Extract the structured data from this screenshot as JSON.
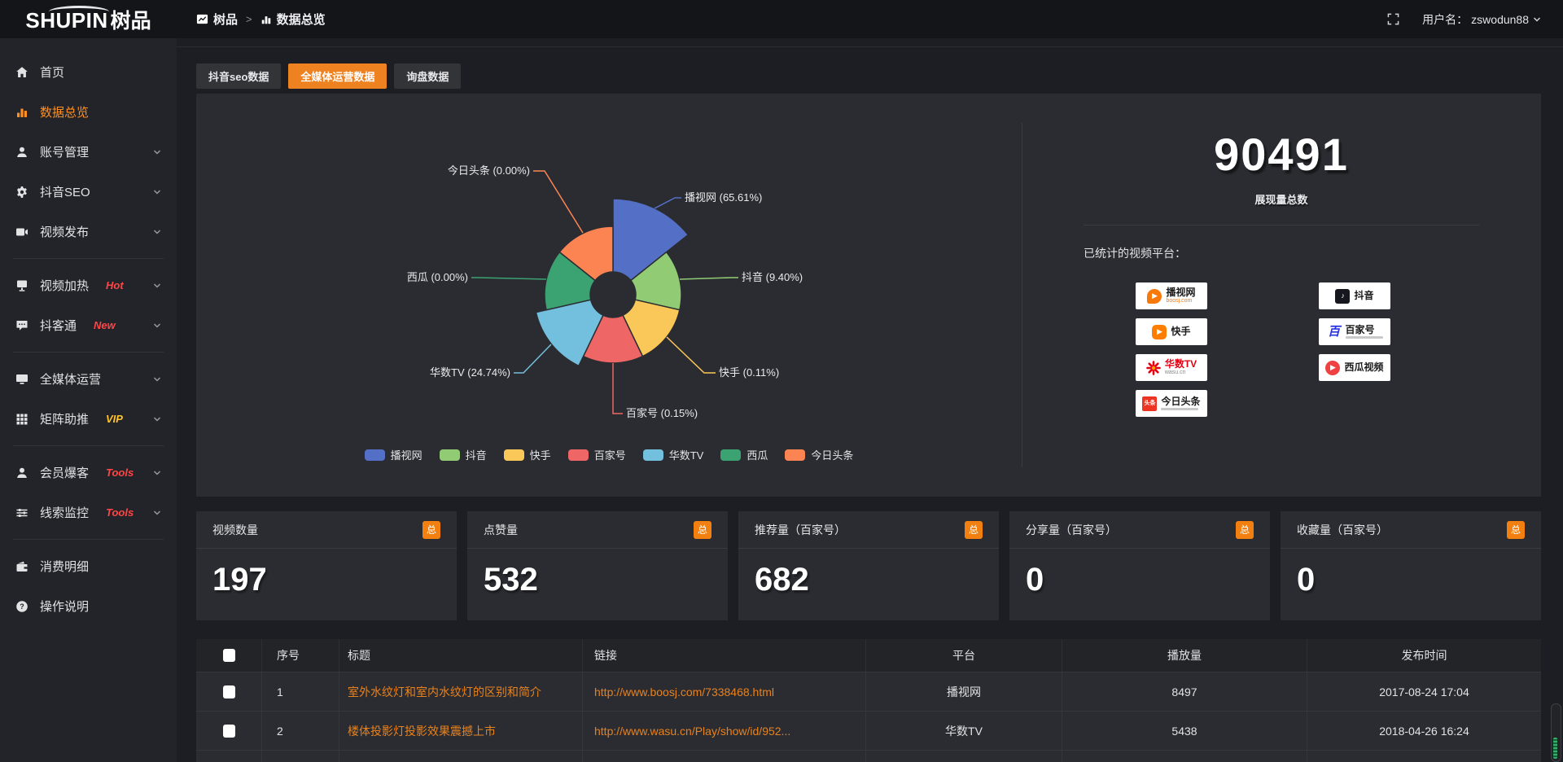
{
  "colors": {
    "accent_orange": "#ee8220",
    "link_orange": "#e8821c",
    "badge_red": "#ff4545",
    "badge_gold": "#ffc32b",
    "panel_bg": "#2b2c31",
    "page_bg": "#1d1e23",
    "sidebar_bg": "#232429",
    "topbar_bg": "#141519"
  },
  "topbar": {
    "logo_text": "SHUPIN",
    "logo_suffix": "树品",
    "breadcrumb": [
      {
        "label": "树品"
      },
      {
        "label": "数据总览"
      }
    ],
    "breadcrumb_separator": ">",
    "username_label": "用户名：",
    "username": "zswodun88"
  },
  "sidebar": {
    "items": [
      {
        "label": "首页",
        "icon": "home"
      },
      {
        "label": "数据总览",
        "icon": "chart",
        "active": true
      },
      {
        "label": "账号管理",
        "icon": "user",
        "chevron": true
      },
      {
        "label": "抖音SEO",
        "icon": "gear",
        "chevron": true
      },
      {
        "label": "视频发布",
        "icon": "video",
        "chevron": true,
        "divider_after": true
      },
      {
        "label": "视频加热",
        "icon": "heat",
        "badge": "Hot",
        "badge_color": "red",
        "chevron": true
      },
      {
        "label": "抖客通",
        "icon": "chat",
        "badge": "New",
        "badge_color": "red",
        "chevron": true,
        "divider_after": true
      },
      {
        "label": "全媒体运营",
        "icon": "monitor",
        "chevron": true
      },
      {
        "label": "矩阵助推",
        "icon": "grid",
        "badge": "VIP",
        "badge_color": "gold",
        "chevron": true,
        "divider_after": true
      },
      {
        "label": "会员爆客",
        "icon": "member",
        "badge": "Tools",
        "badge_color": "red",
        "chevron": true
      },
      {
        "label": "线索监控",
        "icon": "sliders",
        "badge": "Tools",
        "badge_color": "red",
        "chevron": true,
        "divider_after": true
      },
      {
        "label": "消费明细",
        "icon": "wallet"
      },
      {
        "label": "操作说明",
        "icon": "help"
      }
    ]
  },
  "tabs": [
    {
      "label": "抖音seo数据",
      "active": false
    },
    {
      "label": "全媒体运营数据",
      "active": true
    },
    {
      "label": "询盘数据",
      "active": false
    }
  ],
  "chart_data": {
    "type": "pie",
    "variant": "nightingale-rose",
    "title": "",
    "slices": [
      {
        "name": "播视网",
        "value": 65.61,
        "percent": "65.61%",
        "color": "#5470c6"
      },
      {
        "name": "抖音",
        "value": 9.4,
        "percent": "9.40%",
        "color": "#91cc75"
      },
      {
        "name": "快手",
        "value": 0.11,
        "percent": "0.11%",
        "color": "#fac858"
      },
      {
        "name": "百家号",
        "value": 0.15,
        "percent": "0.15%",
        "color": "#ee6666"
      },
      {
        "name": "华数TV",
        "value": 24.74,
        "percent": "24.74%",
        "color": "#73c0de"
      },
      {
        "name": "西瓜",
        "value": 0.0,
        "percent": "0.00%",
        "color": "#3ba272"
      },
      {
        "name": "今日头条",
        "value": 0.0,
        "percent": "0.00%",
        "color": "#fc8452"
      }
    ],
    "legend": [
      "播视网",
      "抖音",
      "快手",
      "百家号",
      "华数TV",
      "西瓜",
      "今日头条"
    ],
    "legend_position": "bottom",
    "label_format": "{name} ({percent})",
    "layout": {
      "center": [
        512,
        247
      ],
      "inner_radius": 28,
      "outer_radii": [
        118,
        84,
        84,
        84,
        97,
        84,
        84
      ]
    }
  },
  "summary": {
    "total_value": "90491",
    "total_label": "展现量总数",
    "platforms_title": "已统计的视频平台：",
    "platforms": [
      {
        "name": "播视网",
        "sub": "boosj.com",
        "logo": "boosj"
      },
      {
        "name": "抖音",
        "logo": "douyin"
      },
      {
        "name": "快手",
        "logo": "kuaishou"
      },
      {
        "name": "百家号",
        "logo": "baijiahao",
        "tagline": true
      },
      {
        "name": "华数TV",
        "sub": "wasu.cn",
        "logo": "wasu"
      },
      {
        "name": "西瓜视频",
        "logo": "xigua"
      },
      {
        "name": "今日头条",
        "logo": "toutiao",
        "tagline": true
      }
    ]
  },
  "stat_cards": [
    {
      "title": "视频数量",
      "badge": "总",
      "value": "197"
    },
    {
      "title": "点赞量",
      "badge": "总",
      "value": "532"
    },
    {
      "title": "推荐量（百家号）",
      "badge": "总",
      "value": "682"
    },
    {
      "title": "分享量（百家号）",
      "badge": "总",
      "value": "0"
    },
    {
      "title": "收藏量（百家号）",
      "badge": "总",
      "value": "0"
    }
  ],
  "table": {
    "columns": [
      "序号",
      "标题",
      "链接",
      "平台",
      "播放量",
      "发布时间"
    ],
    "rows": [
      {
        "index": "1",
        "title": "室外水纹灯和室内水纹灯的区别和简介",
        "link": "http://www.boosj.com/7338468.html",
        "platform": "播视网",
        "plays": "8497",
        "time": "2017-08-24 17:04"
      },
      {
        "index": "2",
        "title": "楼体投影灯投影效果震撼上市",
        "link": "http://www.wasu.cn/Play/show/id/952...",
        "platform": "华数TV",
        "plays": "5438",
        "time": "2018-04-26 16:24"
      }
    ]
  }
}
